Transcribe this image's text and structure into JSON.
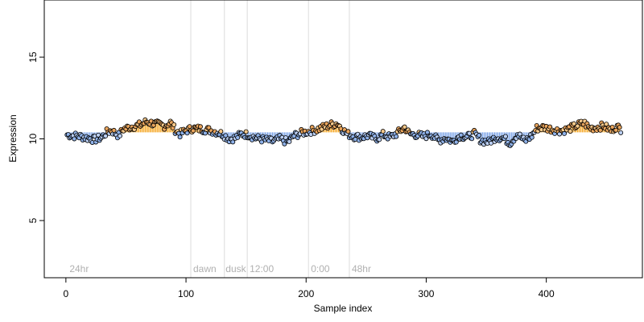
{
  "chart_data": {
    "type": "scatter",
    "xlabel": "Sample index",
    "ylabel": "Expression",
    "xlim": [
      -18,
      480
    ],
    "ylim": [
      1.5,
      18.5
    ],
    "x_ticks": [
      0,
      100,
      200,
      300,
      400
    ],
    "y_ticks": [
      5,
      10,
      15
    ],
    "baseline": 10.4,
    "colors": {
      "above": "#f5a623",
      "below": "#7fa6e8"
    },
    "vertical_lines": [
      104,
      132,
      151,
      202,
      236
    ],
    "annotations": [
      {
        "label": "24hr",
        "x": 3
      },
      {
        "label": "dawn",
        "x": 106
      },
      {
        "label": "dusk",
        "x": 133
      },
      {
        "label": "12:00",
        "x": 153
      },
      {
        "label": "0:00",
        "x": 204
      },
      {
        "label": "48hr",
        "x": 238
      }
    ],
    "anchors": [
      [
        1,
        10.25
      ],
      [
        6,
        10.2
      ],
      [
        12,
        10.15
      ],
      [
        18,
        10.05
      ],
      [
        24,
        9.95
      ],
      [
        30,
        10.1
      ],
      [
        34,
        10.4
      ],
      [
        38,
        10.5
      ],
      [
        44,
        10.2
      ],
      [
        48,
        10.6
      ],
      [
        55,
        10.75
      ],
      [
        62,
        10.85
      ],
      [
        67,
        11.05
      ],
      [
        75,
        10.9
      ],
      [
        82,
        10.8
      ],
      [
        87,
        11.0
      ],
      [
        91,
        10.55
      ],
      [
        95,
        10.3
      ],
      [
        100,
        10.5
      ],
      [
        106,
        10.65
      ],
      [
        112,
        10.6
      ],
      [
        118,
        10.55
      ],
      [
        124,
        10.45
      ],
      [
        130,
        10.3
      ],
      [
        136,
        10.0
      ],
      [
        141,
        10.05
      ],
      [
        146,
        10.3
      ],
      [
        152,
        10.25
      ],
      [
        158,
        10.05
      ],
      [
        165,
        9.95
      ],
      [
        172,
        9.85
      ],
      [
        178,
        10.0
      ],
      [
        185,
        9.8
      ],
      [
        190,
        10.2
      ],
      [
        196,
        10.35
      ],
      [
        202,
        10.45
      ],
      [
        208,
        10.55
      ],
      [
        214,
        10.7
      ],
      [
        220,
        10.85
      ],
      [
        226,
        10.95
      ],
      [
        230,
        10.6
      ],
      [
        234,
        10.3
      ],
      [
        240,
        10.15
      ],
      [
        246,
        10.1
      ],
      [
        252,
        10.2
      ],
      [
        258,
        10.0
      ],
      [
        264,
        10.25
      ],
      [
        270,
        10.1
      ],
      [
        276,
        10.35
      ],
      [
        282,
        10.7
      ],
      [
        286,
        10.3
      ],
      [
        292,
        10.25
      ],
      [
        298,
        10.15
      ],
      [
        304,
        10.3
      ],
      [
        310,
        9.9
      ],
      [
        316,
        10.05
      ],
      [
        322,
        9.85
      ],
      [
        328,
        10.2
      ],
      [
        334,
        10.1
      ],
      [
        340,
        10.3
      ],
      [
        346,
        9.9
      ],
      [
        352,
        9.8
      ],
      [
        358,
        10.1
      ],
      [
        364,
        10.05
      ],
      [
        370,
        9.75
      ],
      [
        376,
        10.3
      ],
      [
        382,
        9.85
      ],
      [
        388,
        10.2
      ],
      [
        392,
        10.65
      ],
      [
        398,
        10.7
      ],
      [
        404,
        10.6
      ],
      [
        410,
        10.5
      ],
      [
        416,
        10.55
      ],
      [
        422,
        10.7
      ],
      [
        428,
        10.9
      ],
      [
        432,
        10.95
      ],
      [
        436,
        10.65
      ],
      [
        442,
        10.7
      ],
      [
        448,
        10.8
      ],
      [
        454,
        10.5
      ],
      [
        458,
        10.75
      ],
      [
        462,
        10.6
      ]
    ],
    "n_points": 462
  }
}
